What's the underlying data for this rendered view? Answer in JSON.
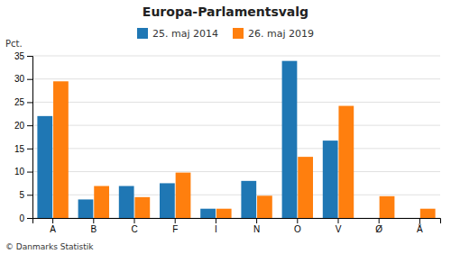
{
  "chart_data": {
    "type": "bar",
    "title": "Europa-Parlamentsvalg",
    "categories": [
      "A",
      "B",
      "C",
      "F",
      "I",
      "N",
      "O",
      "V",
      "Ø",
      "Å"
    ],
    "series": [
      {
        "name": "25. maj 2014",
        "values": [
          22.0,
          4.0,
          6.9,
          7.5,
          2.0,
          8.0,
          33.9,
          16.7,
          0.0,
          0.0
        ]
      },
      {
        "name": "26. maj 2019",
        "values": [
          29.5,
          6.9,
          4.5,
          9.8,
          2.0,
          4.8,
          13.2,
          24.2,
          4.7,
          2.0
        ]
      }
    ],
    "ylabel": "Pct.",
    "ylim": [
      0,
      35
    ],
    "yticks": [
      0,
      5,
      10,
      15,
      20,
      25,
      30,
      35
    ],
    "grid": true,
    "legend": "top",
    "annotations": [
      "© Danmarks Statistik"
    ]
  }
}
